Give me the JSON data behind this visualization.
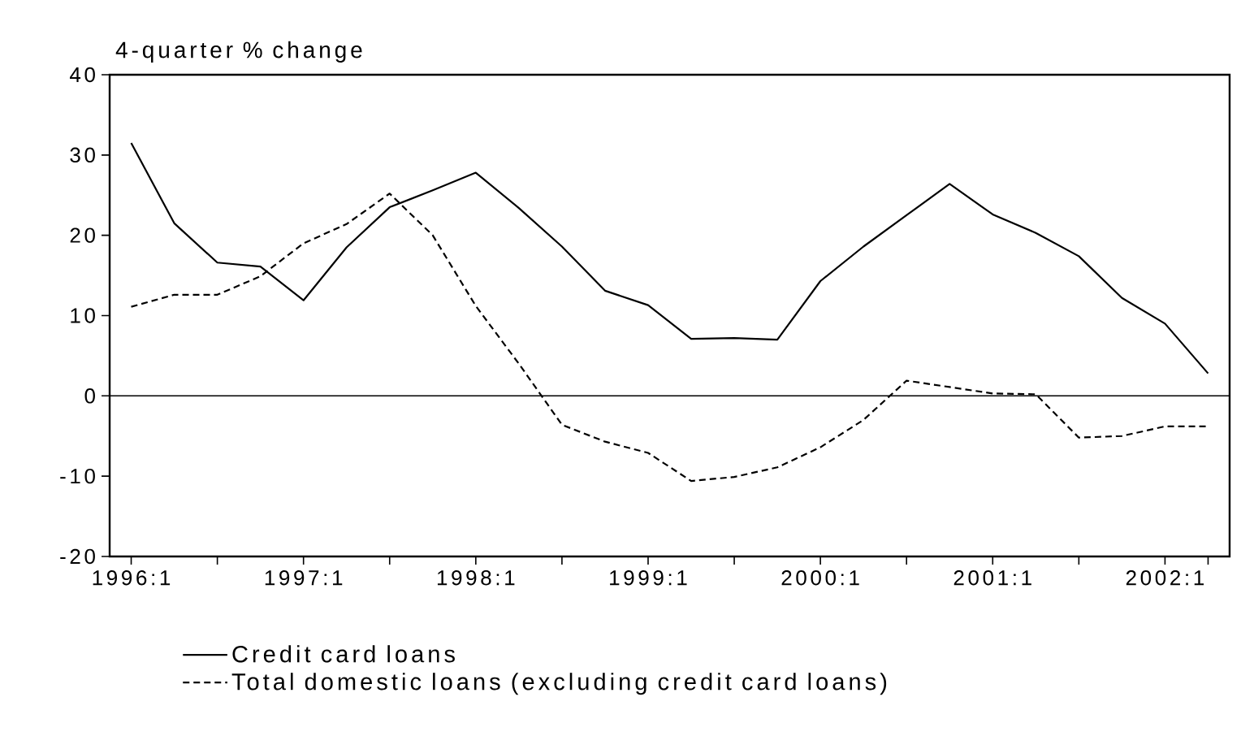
{
  "chart_data": {
    "type": "line",
    "ylabel": "4-quarter % change",
    "categories": [
      "1996:1",
      null,
      null,
      null,
      "1997:1",
      null,
      null,
      null,
      "1998:1",
      null,
      null,
      null,
      "1999:1",
      null,
      null,
      null,
      "2000:1",
      null,
      null,
      null,
      "2001:1",
      null,
      null,
      null,
      "2002:1",
      null
    ],
    "series": [
      {
        "name": "Credit card loans",
        "color": "#000000",
        "line_style": "solid",
        "values": [
          31.5,
          21.5,
          16.6,
          16.1,
          11.9,
          18.5,
          23.5,
          25.6,
          27.8,
          23.4,
          18.6,
          13.1,
          11.3,
          7.1,
          7.2,
          7.0,
          14.3,
          18.6,
          22.5,
          26.4,
          22.6,
          20.3,
          17.4,
          12.2,
          9.0,
          2.8
        ]
      },
      {
        "name": "Total domestic loans (excluding credit card loans)",
        "color": "#000000",
        "line_style": "dashed",
        "values": [
          11.1,
          12.6,
          12.6,
          14.9,
          19.0,
          21.4,
          25.2,
          20.0,
          11.2,
          4.0,
          -3.6,
          -5.7,
          -7.1,
          -10.6,
          -10.1,
          -8.9,
          -6.4,
          -3.0,
          1.9,
          1.1,
          0.3,
          0.2,
          -5.2,
          -5.0,
          -3.8,
          -3.8
        ]
      }
    ],
    "ylim": [
      -20,
      40
    ],
    "yticks": [
      -20,
      -10,
      0,
      10,
      20,
      30,
      40
    ],
    "ref_lines": [
      {
        "axis": "y",
        "value": 0,
        "color": "#000000"
      }
    ],
    "grid": false,
    "legend": "bottom",
    "marker": "none"
  }
}
